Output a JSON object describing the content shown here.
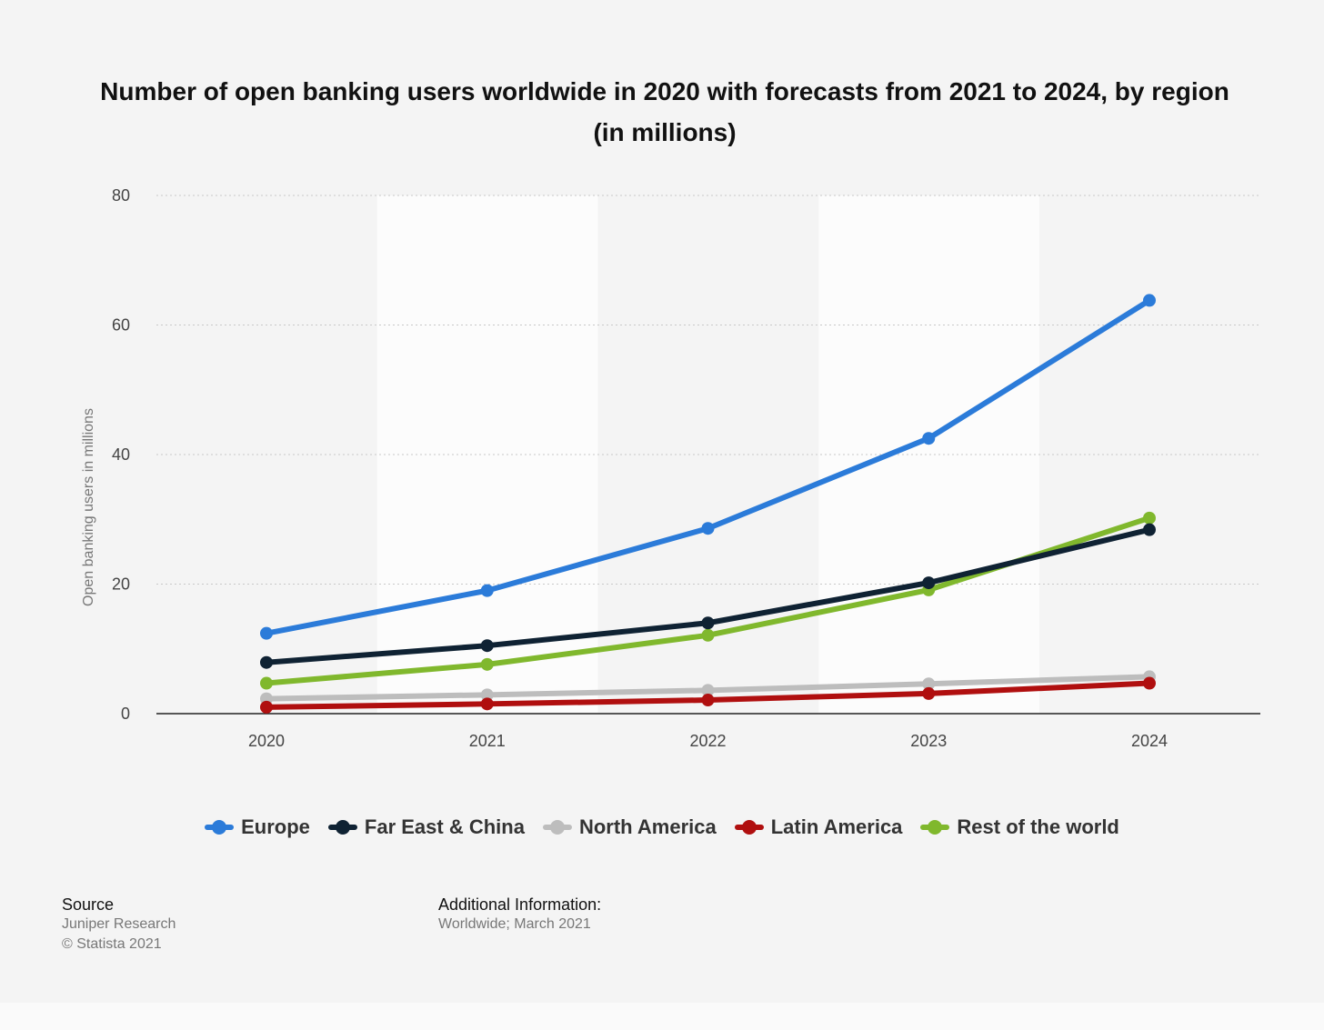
{
  "chart_data": {
    "type": "line",
    "title": "Number of open banking users worldwide in 2020 with forecasts from 2021 to 2024, by region (in millions)",
    "xlabel": "",
    "ylabel": "Open banking users in millions",
    "x": [
      "2020",
      "2021",
      "2022",
      "2023",
      "2024"
    ],
    "ylim": [
      0,
      80
    ],
    "yticks": [
      "0",
      "20",
      "40",
      "60",
      "80"
    ],
    "grid": true,
    "legend_position": "bottom",
    "series": [
      {
        "name": "Europe",
        "color": "#2b7bd9",
        "values": [
          12.4,
          19.0,
          28.6,
          42.5,
          63.8
        ]
      },
      {
        "name": "Far East & China",
        "color": "#0f2233",
        "values": [
          7.9,
          10.5,
          14.0,
          20.2,
          28.4
        ]
      },
      {
        "name": "North America",
        "color": "#bdbdbd",
        "values": [
          2.3,
          2.9,
          3.6,
          4.6,
          5.7
        ]
      },
      {
        "name": "Latin America",
        "color": "#b00f0f",
        "values": [
          1.0,
          1.5,
          2.1,
          3.1,
          4.7
        ]
      },
      {
        "name": "Rest of the world",
        "color": "#80b82d",
        "values": [
          4.7,
          7.6,
          12.1,
          19.1,
          30.2
        ]
      }
    ]
  },
  "footer": {
    "source_heading": "Source",
    "source_name": "Juniper Research",
    "copyright": "© Statista 2021",
    "info_heading": "Additional Information:",
    "info_text": "Worldwide; March 2021"
  }
}
